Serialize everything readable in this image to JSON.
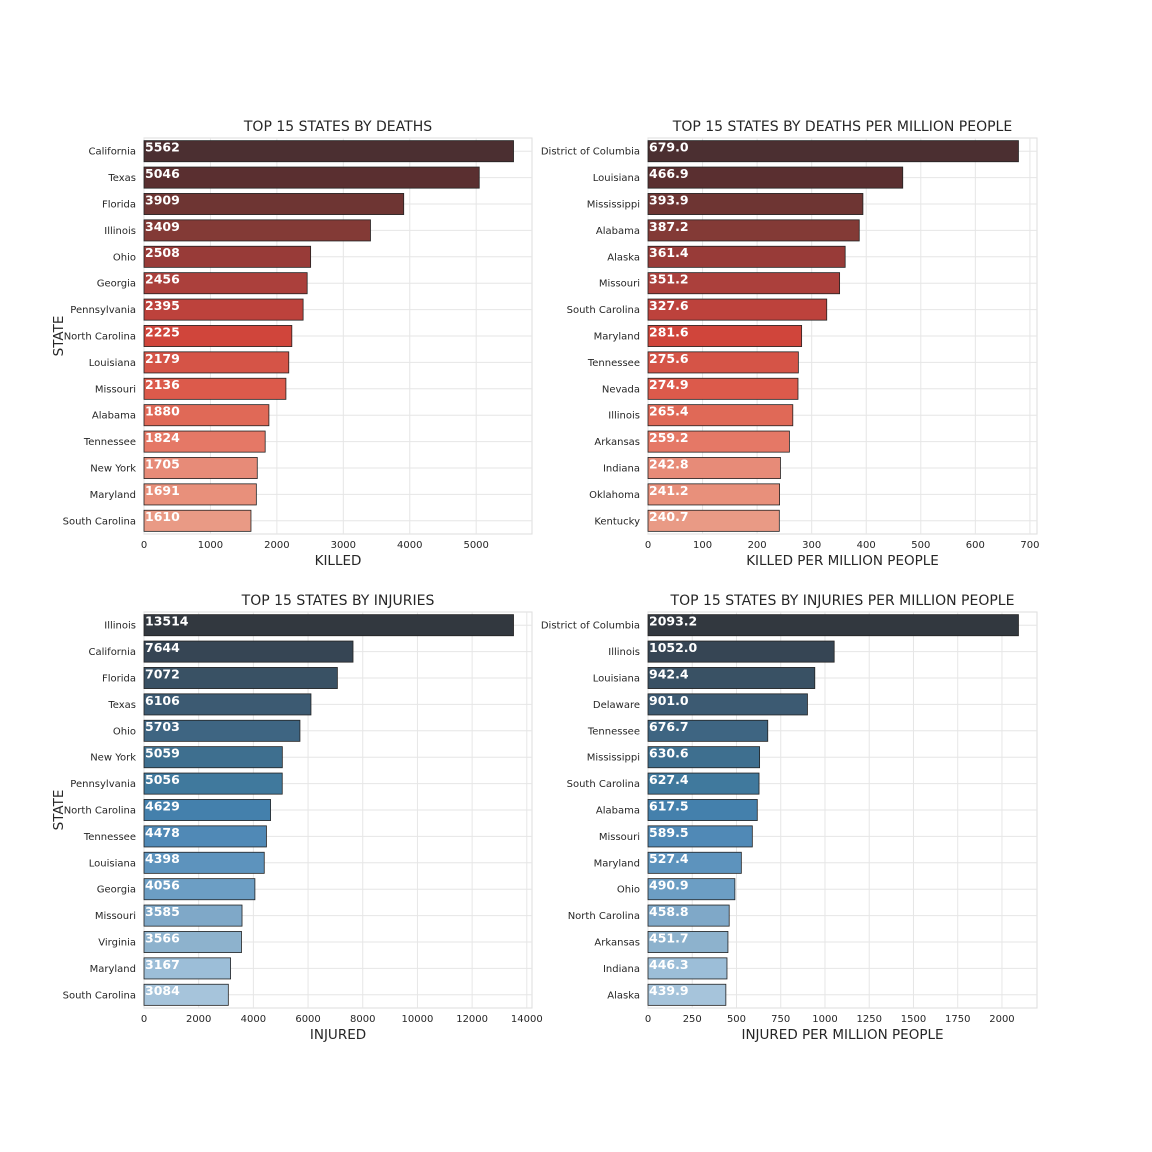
{
  "chart_data": [
    {
      "type": "bar",
      "orientation": "horizontal",
      "title": "TOP 15 STATES BY DEATHS",
      "xlabel": "KILLED",
      "ylabel": "STATE",
      "xlim": [
        0,
        5840
      ],
      "xticks": [
        0,
        1000,
        2000,
        3000,
        4000,
        5000
      ],
      "grid": true,
      "palette": "reds",
      "value_format": "int",
      "categories": [
        "California",
        "Texas",
        "Florida",
        "Illinois",
        "Ohio",
        "Georgia",
        "Pennsylvania",
        "North Carolina",
        "Louisiana",
        "Missouri",
        "Alabama",
        "Tennessee",
        "New York",
        "Maryland",
        "South Carolina"
      ],
      "values": [
        5562,
        5046,
        3909,
        3409,
        2508,
        2456,
        2395,
        2225,
        2179,
        2136,
        1880,
        1824,
        1705,
        1691,
        1610
      ],
      "colors": [
        "#4b2f31",
        "#5a2f30",
        "#6e3533",
        "#833a36",
        "#983b38",
        "#ab403c",
        "#bd423c",
        "#d0453b",
        "#d55447",
        "#dc5a4b",
        "#e06957",
        "#e57866",
        "#e78b78",
        "#e8907b",
        "#e99a85"
      ]
    },
    {
      "type": "bar",
      "orientation": "horizontal",
      "title": "TOP 15 STATES BY DEATHS PER MILLION PEOPLE",
      "xlabel": "KILLED PER MILLION PEOPLE",
      "ylabel": "",
      "xlim": [
        0,
        713
      ],
      "xticks": [
        0,
        100,
        200,
        300,
        400,
        500,
        600,
        700
      ],
      "grid": true,
      "palette": "reds",
      "value_format": "1dp",
      "categories": [
        "District of Columbia",
        "Louisiana",
        "Mississippi",
        "Alabama",
        "Alaska",
        "Missouri",
        "South Carolina",
        "Maryland",
        "Tennessee",
        "Nevada",
        "Illinois",
        "Arkansas",
        "Indiana",
        "Oklahoma",
        "Kentucky"
      ],
      "values": [
        679.0,
        466.9,
        393.9,
        387.2,
        361.4,
        351.2,
        327.6,
        281.6,
        275.6,
        274.9,
        265.4,
        259.2,
        242.8,
        241.2,
        240.7
      ],
      "colors": [
        "#4b2f31",
        "#5a2f30",
        "#6e3533",
        "#833a36",
        "#983b38",
        "#ab403c",
        "#bd423c",
        "#d0453b",
        "#d55447",
        "#dc5a4b",
        "#e06957",
        "#e57866",
        "#e78b78",
        "#e8907b",
        "#e99a85"
      ]
    },
    {
      "type": "bar",
      "orientation": "horizontal",
      "title": "TOP 15 STATES BY INJURIES",
      "xlabel": "INJURED",
      "ylabel": "STATE",
      "xlim": [
        0,
        14190
      ],
      "xticks": [
        0,
        2000,
        4000,
        6000,
        8000,
        10000,
        12000,
        14000
      ],
      "grid": true,
      "palette": "blues",
      "value_format": "int",
      "categories": [
        "Illinois",
        "California",
        "Florida",
        "Texas",
        "Ohio",
        "New York",
        "Pennsylvania",
        "North Carolina",
        "Tennessee",
        "Louisiana",
        "Georgia",
        "Missouri",
        "Virginia",
        "Maryland",
        "South Carolina"
      ],
      "values": [
        13514,
        7644,
        7072,
        6106,
        5703,
        5059,
        5056,
        4629,
        4478,
        4398,
        4056,
        3585,
        3566,
        3167,
        3084
      ],
      "colors": [
        "#32383f",
        "#364554",
        "#395164",
        "#3c5a72",
        "#3e6582",
        "#3e6f8f",
        "#40799d",
        "#4480ac",
        "#5089b6",
        "#5d93bd",
        "#6c9ec4",
        "#7fa8c8",
        "#8db2cd",
        "#9cbed8",
        "#a6c4db"
      ]
    },
    {
      "type": "bar",
      "orientation": "horizontal",
      "title": "TOP 15 STATES BY INJURIES PER MILLION PEOPLE",
      "xlabel": "INJURED PER MILLION PEOPLE",
      "ylabel": "",
      "xlim": [
        0,
        2198
      ],
      "xticks": [
        0,
        250,
        500,
        750,
        1000,
        1250,
        1500,
        1750,
        2000
      ],
      "grid": true,
      "palette": "blues",
      "value_format": "1dp",
      "categories": [
        "District of Columbia",
        "Illinois",
        "Louisiana",
        "Delaware",
        "Tennessee",
        "Mississippi",
        "South Carolina",
        "Alabama",
        "Missouri",
        "Maryland",
        "Ohio",
        "North Carolina",
        "Arkansas",
        "Indiana",
        "Alaska"
      ],
      "values": [
        2093.2,
        1052.0,
        942.4,
        901.0,
        676.7,
        630.6,
        627.4,
        617.5,
        589.5,
        527.4,
        490.9,
        458.8,
        451.7,
        446.3,
        439.9
      ],
      "colors": [
        "#32383f",
        "#364554",
        "#395164",
        "#3c5a72",
        "#3e6582",
        "#3e6f8f",
        "#40799d",
        "#4480ac",
        "#5089b6",
        "#5d93bd",
        "#6c9ec4",
        "#7fa8c8",
        "#8db2cd",
        "#9cbed8",
        "#a6c4db"
      ]
    }
  ]
}
